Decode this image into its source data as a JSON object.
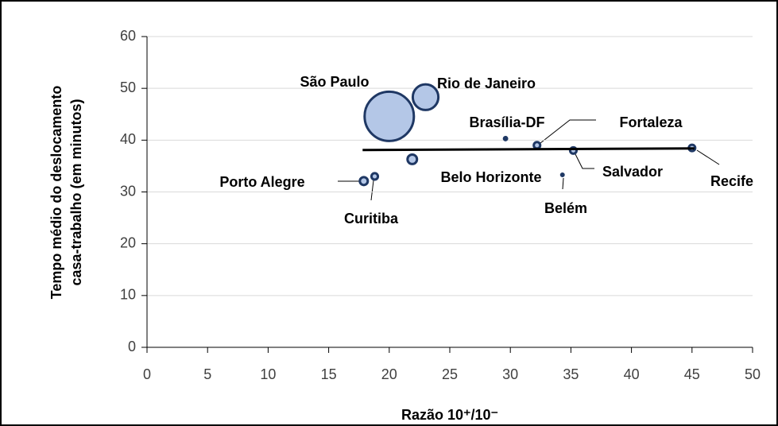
{
  "chart_data": {
    "type": "bubble",
    "x_label": "Razão 10⁺/10⁻",
    "y_label": [
      "Tempo médio do deslocamento",
      "casa-trabalho (em minutos)"
    ],
    "labels": [
      "São Paulo",
      "Rio de Janeiro",
      "Belo Horizonte",
      "Porto Alegre",
      "Curitiba",
      "Brasília-DF",
      "Fortaleza",
      "Salvador",
      "Belém",
      "Recife"
    ],
    "x": [
      20,
      23,
      21.9,
      17.9,
      18.8,
      29.6,
      32.2,
      35.2,
      34.3,
      45
    ],
    "values": [
      44.6,
      48.3,
      36.3,
      32.1,
      33,
      40.3,
      39,
      38,
      33.3,
      38.5
    ],
    "sizes": [
      100,
      27,
      3.7,
      2.6,
      1.7,
      0.9,
      1.7,
      1.7,
      0.65,
      1.7
    ],
    "color": "#b4c7e7",
    "edge_color": "#1f3864",
    "trend_line": {
      "x": [
        17.8,
        45.2
      ],
      "y": [
        38.1,
        38.4
      ],
      "color": "#000000"
    },
    "xlim": [
      0,
      50
    ],
    "xticks": [
      0,
      5,
      10,
      15,
      20,
      25,
      30,
      35,
      40,
      45,
      50
    ],
    "ylim": [
      0,
      60
    ],
    "yticks": [
      0,
      10,
      20,
      30,
      40,
      50,
      60
    ],
    "grid": true
  }
}
